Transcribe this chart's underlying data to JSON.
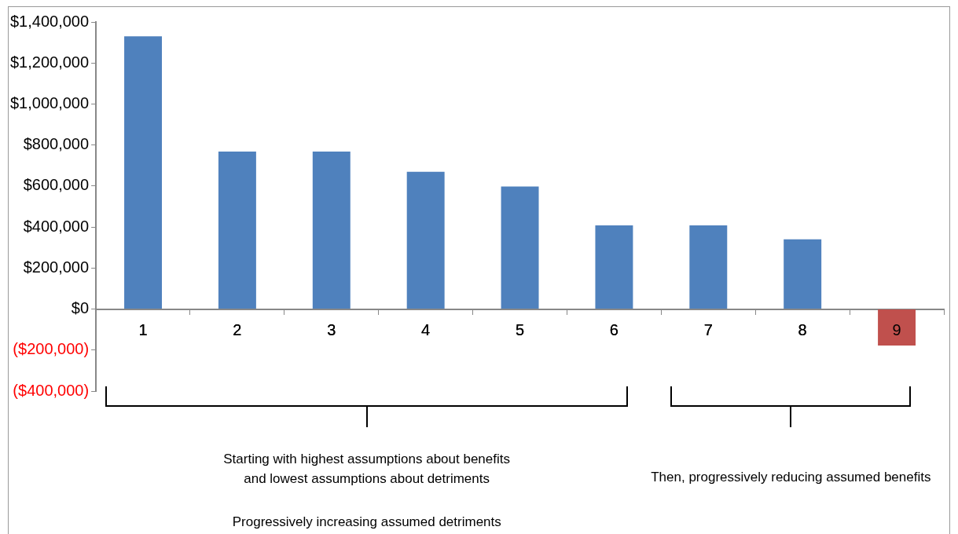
{
  "chart_data": {
    "type": "bar",
    "categories": [
      "1",
      "2",
      "3",
      "4",
      "5",
      "6",
      "7",
      "8",
      "9"
    ],
    "values": [
      1330000,
      768000,
      768000,
      669000,
      598000,
      408000,
      408000,
      340000,
      -178000
    ],
    "colors": [
      "#4f81bd",
      "#4f81bd",
      "#4f81bd",
      "#4f81bd",
      "#4f81bd",
      "#4f81bd",
      "#4f81bd",
      "#4f81bd",
      "#c0504d"
    ],
    "ylim": [
      -400000,
      1400000
    ],
    "yticks": [
      {
        "value": -400000,
        "label": "($400,000)"
      },
      {
        "value": -200000,
        "label": "($200,000)"
      },
      {
        "value": 0,
        "label": "$0"
      },
      {
        "value": 200000,
        "label": "$200,000"
      },
      {
        "value": 400000,
        "label": "$400,000"
      },
      {
        "value": 600000,
        "label": "$600,000"
      },
      {
        "value": 800000,
        "label": "$800,000"
      },
      {
        "value": 1000000,
        "label": "$1,000,000"
      },
      {
        "value": 1200000,
        "label": "$1,200,000"
      },
      {
        "value": 1400000,
        "label": "$1,400,000"
      }
    ],
    "grid": false,
    "legend": false,
    "annotations": [
      "Starting with highest assumptions about benefits\nand lowest assumptions about detriments",
      "Progressively increasing assumed detriments",
      "Then, progressively reducing assumed benefits"
    ]
  }
}
